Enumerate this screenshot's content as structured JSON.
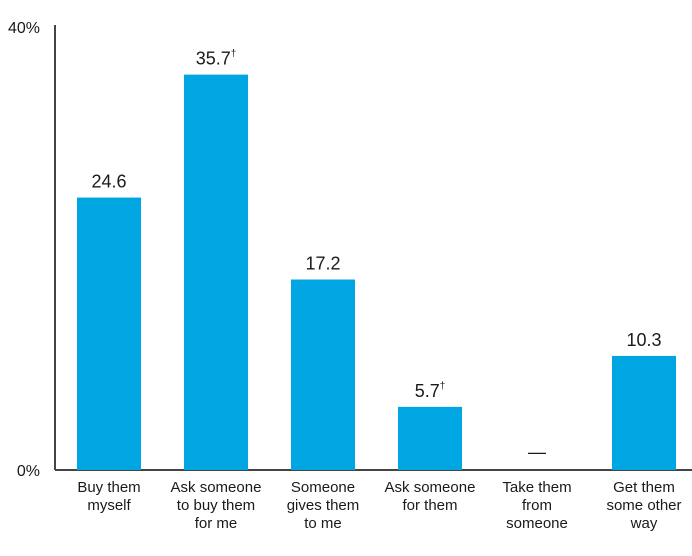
{
  "chart_data": {
    "type": "bar",
    "categories": [
      [
        "Buy them",
        "myself"
      ],
      [
        "Ask someone",
        "to buy them",
        "for me"
      ],
      [
        "Someone",
        "gives them",
        "to me"
      ],
      [
        "Ask someone",
        "for them"
      ],
      [
        "Take them",
        "from",
        "someone"
      ],
      [
        "Get them",
        "some other",
        "way"
      ]
    ],
    "values": [
      24.6,
      35.7,
      17.2,
      5.7,
      null,
      10.3
    ],
    "value_labels": [
      "24.6",
      "35.7",
      "17.2",
      "5.7",
      "—",
      "10.3"
    ],
    "value_markers": [
      "",
      "†",
      "",
      "†",
      "",
      ""
    ],
    "ylim": [
      0,
      40
    ],
    "yticks": [
      {
        "value": 0,
        "label": "0%"
      },
      {
        "value": 40,
        "label": "40%"
      }
    ],
    "bar_color": "#00a6e2",
    "axis_color": "#444444",
    "grid": false,
    "legend": "none"
  }
}
